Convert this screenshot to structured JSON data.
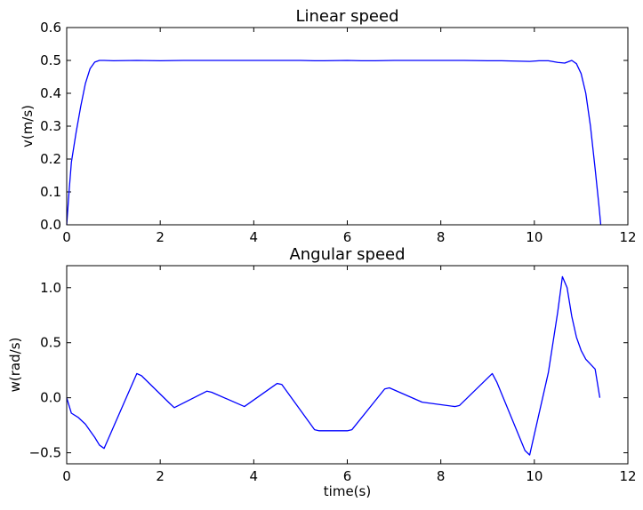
{
  "chart_data": [
    {
      "type": "line",
      "title": "Linear speed",
      "xlabel": "",
      "ylabel": "v(m/s)",
      "xlim": [
        0,
        12
      ],
      "ylim": [
        0,
        0.6
      ],
      "xticks": [
        "0",
        "2",
        "4",
        "6",
        "8",
        "10",
        "12"
      ],
      "yticks": [
        "0.0",
        "0.1",
        "0.2",
        "0.3",
        "0.4",
        "0.5",
        "0.6"
      ],
      "grid": false,
      "series": [
        {
          "color": "#0000ff",
          "x": [
            0,
            0.05,
            0.1,
            0.2,
            0.3,
            0.4,
            0.5,
            0.6,
            0.7,
            0.8,
            1.0,
            1.5,
            2.0,
            2.5,
            3.0,
            3.5,
            4.0,
            4.5,
            5.0,
            5.3,
            5.5,
            6.0,
            6.3,
            6.6,
            7.0,
            7.5,
            8.0,
            8.5,
            9.0,
            9.3,
            9.6,
            9.9,
            10.1,
            10.3,
            10.5,
            10.65,
            10.8,
            10.9,
            11.0,
            11.1,
            11.2,
            11.3,
            11.38,
            11.42
          ],
          "y": [
            0.0,
            0.1,
            0.19,
            0.28,
            0.36,
            0.43,
            0.475,
            0.495,
            0.5,
            0.5,
            0.499,
            0.5,
            0.499,
            0.5,
            0.5,
            0.5,
            0.5,
            0.5,
            0.5,
            0.499,
            0.499,
            0.5,
            0.499,
            0.499,
            0.5,
            0.5,
            0.5,
            0.5,
            0.499,
            0.499,
            0.498,
            0.497,
            0.499,
            0.499,
            0.494,
            0.492,
            0.5,
            0.49,
            0.46,
            0.4,
            0.3,
            0.17,
            0.06,
            0.0
          ]
        }
      ]
    },
    {
      "type": "line",
      "title": "Angular speed",
      "xlabel": "time(s)",
      "ylabel": "w(rad/s)",
      "xlim": [
        0,
        12
      ],
      "ylim": [
        -0.6,
        1.2
      ],
      "xticks": [
        "0",
        "2",
        "4",
        "6",
        "8",
        "10",
        "12"
      ],
      "yticks": [
        "−0.5",
        "0.0",
        "0.5",
        "1.0"
      ],
      "ytick_values": [
        -0.5,
        0.0,
        0.5,
        1.0
      ],
      "grid": false,
      "series": [
        {
          "color": "#0000ff",
          "x": [
            0.0,
            0.1,
            0.25,
            0.4,
            0.5,
            0.6,
            0.7,
            0.8,
            1.5,
            1.6,
            2.2,
            2.3,
            3.0,
            3.1,
            3.8,
            4.5,
            4.6,
            5.3,
            5.4,
            5.6,
            5.8,
            6.0,
            6.1,
            6.8,
            6.9,
            7.6,
            8.3,
            8.4,
            9.1,
            9.2,
            9.8,
            9.9,
            10.3,
            10.5,
            10.6,
            10.7,
            10.8,
            10.9,
            11.0,
            11.1,
            11.3,
            11.4
          ],
          "y": [
            0.0,
            -0.14,
            -0.18,
            -0.24,
            -0.3,
            -0.36,
            -0.43,
            -0.46,
            0.22,
            0.2,
            -0.05,
            -0.09,
            0.06,
            0.05,
            -0.08,
            0.13,
            0.12,
            -0.29,
            -0.3,
            -0.3,
            -0.3,
            -0.3,
            -0.29,
            0.08,
            0.09,
            -0.04,
            -0.08,
            -0.07,
            0.22,
            0.14,
            -0.48,
            -0.52,
            0.23,
            0.78,
            1.1,
            1.0,
            0.74,
            0.55,
            0.43,
            0.35,
            0.26,
            0.0
          ]
        }
      ]
    }
  ]
}
